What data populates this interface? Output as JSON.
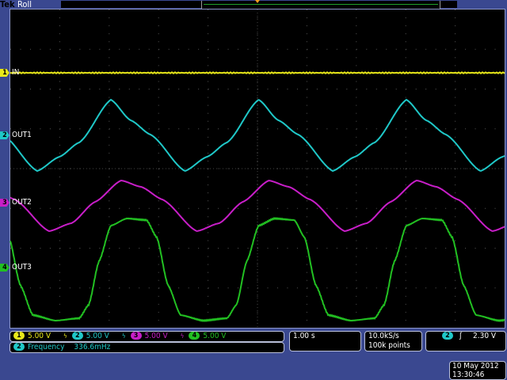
{
  "header": {
    "brand": "Tek",
    "mode": "Roll"
  },
  "colors": {
    "ch1": "#e8e81a",
    "ch2": "#1fc8c8",
    "ch3": "#c81ec8",
    "ch4": "#22c022",
    "background": "#3a4890"
  },
  "channels": [
    {
      "number": "1",
      "label": "IN",
      "scale": "5.00 V"
    },
    {
      "number": "2",
      "label": "OUT1",
      "scale": "5.00 V"
    },
    {
      "number": "3",
      "label": "OUT2",
      "scale": "5.00 V"
    },
    {
      "number": "4",
      "label": "OUT3",
      "scale": "5.00 V"
    }
  ],
  "bandwidth_icon": "bandwidth-limit-icon",
  "measurement": {
    "channel": "2",
    "name": "Frequency",
    "value": "336.6mHz"
  },
  "horizontal": {
    "scale": "1.00 s"
  },
  "acquisition": {
    "sample_rate": "10.0kS/s",
    "record_length": "100k points"
  },
  "trigger": {
    "channel": "2",
    "slope_icon": "rising-edge-icon",
    "slope": "ʃ",
    "level": "2.30 V"
  },
  "datetime": {
    "date": "10 May 2012",
    "time": "13:30:46"
  }
}
